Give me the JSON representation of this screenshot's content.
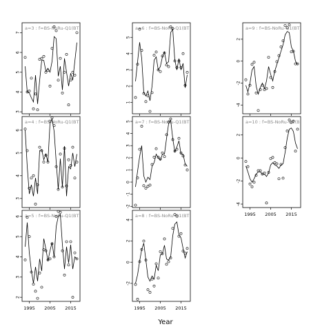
{
  "figure": {
    "xlabel": "Year"
  },
  "chart_data": [
    {
      "type": "scatter",
      "title": "a=3 : f=BS-NoRu-Q1(BT",
      "ylim": [
        2.9,
        7.5
      ],
      "yticks": [
        3,
        4,
        5,
        6,
        7
      ],
      "x": [
        1993,
        1994,
        1995,
        1996,
        1997,
        1998,
        1999,
        2000,
        2001,
        2002,
        2003,
        2004,
        2005,
        2006,
        2007,
        2008,
        2009,
        2010,
        2011,
        2012,
        2013,
        2014,
        2015,
        2016,
        2017,
        2018
      ],
      "points_y": [
        5.75,
        4.0,
        4.05,
        4.7,
        3.15,
        3.9,
        3.1,
        5.65,
        5.7,
        5.8,
        5.0,
        5.1,
        4.3,
        6.2,
        7.3,
        7.1,
        4.6,
        5.7,
        3.95,
        5.0,
        5.9,
        3.35,
        4.6,
        5.0,
        4.85,
        7.0
      ],
      "fit_y": [
        5.3,
        4.0,
        3.95,
        3.7,
        3.5,
        4.85,
        3.4,
        4.6,
        5.6,
        5.6,
        5.05,
        5.2,
        5.0,
        5.55,
        6.8,
        6.7,
        4.8,
        5.3,
        4.1,
        5.7,
        5.0,
        4.3,
        4.95,
        4.6,
        5.55,
        6.5
      ]
    },
    {
      "type": "scatter",
      "title": "a=4 : f=BS-NoRu-Q1(BT",
      "ylim": [
        2.6,
        6.6
      ],
      "yticks": [
        3,
        4,
        5,
        6
      ],
      "x": [
        1993,
        1994,
        1995,
        1996,
        1997,
        1998,
        1999,
        2000,
        2001,
        2002,
        2003,
        2004,
        2005,
        2006,
        2007,
        2008,
        2009,
        2010,
        2011,
        2012,
        2013,
        2014,
        2015,
        2016,
        2017,
        2018
      ],
      "points_y": [
        6.05,
        5.1,
        3.45,
        3.9,
        4.0,
        2.75,
        3.6,
        5.25,
        5.1,
        4.6,
        4.9,
        4.6,
        6.4,
        6.55,
        6.2,
        4.4,
        3.4,
        4.95,
        3.5,
        5.2,
        3.55,
        4.7,
        4.45,
        5.25,
        3.9,
        4.6
      ],
      "fit_y": [
        6.0,
        4.4,
        3.2,
        3.6,
        3.1,
        3.9,
        3.2,
        5.1,
        5.15,
        4.7,
        4.95,
        4.6,
        6.3,
        6.5,
        5.95,
        4.6,
        3.4,
        4.75,
        3.5,
        5.3,
        3.1,
        4.4,
        4.3,
        5.0,
        4.4,
        4.95
      ]
    },
    {
      "type": "scatter",
      "title": "a=5 : f=BS-NoRu-Q1(BT",
      "ylim": [
        1.8,
        6.3
      ],
      "yticks": [
        2,
        3,
        4,
        5,
        6
      ],
      "x": [
        1993,
        1994,
        1995,
        1996,
        1997,
        1998,
        1999,
        2000,
        2001,
        2002,
        2003,
        2004,
        2005,
        2006,
        2007,
        2008,
        2009,
        2010,
        2011,
        2012,
        2013,
        2014,
        2015,
        2016,
        2017,
        2018
      ],
      "points_y": [
        3.85,
        5.95,
        5.0,
        3.25,
        2.65,
        2.3,
        1.95,
        3.2,
        2.5,
        4.35,
        4.3,
        3.85,
        3.9,
        4.65,
        4.0,
        6.0,
        6.25,
        6.2,
        4.3,
        3.1,
        4.75,
        3.6,
        4.75,
        2.0,
        4.2,
        3.9
      ],
      "fit_y": [
        4.5,
        5.7,
        4.2,
        3.3,
        2.7,
        3.5,
        2.8,
        3.9,
        3.3,
        4.9,
        4.4,
        3.8,
        4.3,
        4.7,
        4.0,
        5.5,
        6.0,
        6.1,
        4.6,
        3.4,
        4.5,
        3.7,
        4.6,
        3.4,
        4.0,
        3.9
      ]
    },
    {
      "type": "scatter",
      "title": "a=6 : f=BS-NoRu-Q1(BT",
      "ylim": [
        0.3,
        5.9
      ],
      "yticks": [
        1,
        2,
        3,
        4,
        5
      ],
      "x": [
        1993,
        1994,
        1995,
        1996,
        1997,
        1998,
        1999,
        2000,
        2001,
        2002,
        2003,
        2004,
        2005,
        2006,
        2007,
        2008,
        2009,
        2010,
        2011,
        2012,
        2013,
        2014,
        2015,
        2016,
        2017,
        2018
      ],
      "points_y": [
        1.3,
        3.35,
        5.5,
        4.2,
        1.55,
        1.05,
        1.4,
        0.45,
        1.6,
        3.9,
        4.1,
        3.0,
        2.9,
        3.85,
        4.05,
        3.3,
        3.2,
        5.65,
        5.55,
        3.55,
        3.15,
        3.55,
        3.15,
        4.0,
        2.05,
        2.85
      ],
      "fit_y": [
        2.3,
        3.5,
        4.7,
        3.7,
        1.6,
        1.4,
        1.7,
        1.1,
        2.0,
        3.6,
        3.8,
        3.0,
        3.2,
        3.8,
        4.1,
        3.4,
        3.5,
        5.3,
        5.5,
        3.6,
        3.0,
        3.7,
        3.0,
        3.4,
        1.9,
        2.7
      ]
    },
    {
      "type": "scatter",
      "title": "a=7 : f=BS-NoRu-Q1(BT",
      "ylim": [
        -2.1,
        5.4
      ],
      "yticks": [
        -2,
        -1,
        0,
        1,
        2,
        3,
        4,
        5
      ],
      "x": [
        1993,
        1994,
        1995,
        1996,
        1997,
        1998,
        1999,
        2000,
        2001,
        2002,
        2003,
        2004,
        2005,
        2006,
        2007,
        2008,
        2009,
        2010,
        2011,
        2012,
        2013,
        2014,
        2015,
        2016,
        2017,
        2018
      ],
      "points_y": [
        -1.9,
        0.35,
        2.7,
        4.6,
        -0.3,
        -0.5,
        -0.35,
        -0.25,
        1.45,
        2.05,
        2.75,
        2.05,
        1.9,
        2.4,
        2.1,
        3.9,
        4.95,
        5.2,
        3.5,
        2.55,
        2.7,
        3.6,
        2.4,
        2.15,
        1.4,
        1.0
      ],
      "fit_y": [
        -0.4,
        0.9,
        2.1,
        3.0,
        0.5,
        0.0,
        0.4,
        0.2,
        1.3,
        1.6,
        2.3,
        2.0,
        1.8,
        2.3,
        2.3,
        3.6,
        4.8,
        5.1,
        3.6,
        2.5,
        2.9,
        3.4,
        2.3,
        2.3,
        1.5,
        1.3
      ]
    },
    {
      "type": "scatter",
      "title": "a=8 : f=BS-NoRu-Q1(BT",
      "ylim": [
        -3.7,
        4.9
      ],
      "yticks": [
        -2,
        0,
        2,
        4
      ],
      "x": [
        1993,
        1994,
        1995,
        1996,
        1997,
        1998,
        1999,
        2000,
        2001,
        2002,
        2003,
        2004,
        2005,
        2006,
        2007,
        2008,
        2009,
        2010,
        2011,
        2012,
        2013,
        2014,
        2015,
        2016,
        2017,
        2018
      ],
      "points_y": [
        -2.1,
        -3.5,
        0.05,
        1.2,
        2.0,
        0.2,
        -2.6,
        -2.85,
        -1.6,
        -2.25,
        -0.15,
        -1.5,
        1.0,
        0.8,
        2.2,
        -0.2,
        0.05,
        0.4,
        3.2,
        4.5,
        4.35,
        2.45,
        2.7,
        1.05,
        0.85,
        1.3
      ],
      "fit_y": [
        -2.0,
        -1.2,
        0.1,
        1.2,
        1.8,
        0.2,
        -1.4,
        -1.8,
        -1.3,
        -1.6,
        -0.3,
        -0.8,
        0.7,
        0.8,
        1.6,
        0.3,
        0.2,
        0.5,
        2.5,
        3.6,
        3.8,
        2.6,
        2.3,
        1.3,
        0.4,
        1.0
      ]
    },
    {
      "type": "scatter",
      "title": "a=9 : f=BS-NoRu-Q1(BT",
      "ylim": [
        -4.8,
        3.5
      ],
      "yticks": [
        -4,
        -2,
        0,
        2
      ],
      "x": [
        1993,
        1994,
        1995,
        1996,
        1997,
        1998,
        1999,
        2000,
        2001,
        2002,
        2003,
        2004,
        2005,
        2006,
        2007,
        2008,
        2009,
        2010,
        2011,
        2012,
        2013,
        2014,
        2015,
        2016,
        2017,
        2018
      ],
      "points_y": [
        -1.7,
        -3.0,
        -2.2,
        -0.3,
        -0.1,
        -2.9,
        -4.5,
        -2.6,
        -2.2,
        -2.6,
        -2.5,
        0.35,
        -1.5,
        -2.4,
        -0.95,
        -0.05,
        0.5,
        1.3,
        1.85,
        3.25,
        3.05,
        3.3,
        0.85,
        0.9,
        -0.25,
        -0.25
      ],
      "fit_y": [
        -2.2,
        -2.8,
        -2.0,
        -0.8,
        -0.5,
        -2.3,
        -3.0,
        -2.4,
        -2.0,
        -2.5,
        -1.8,
        -0.5,
        -1.2,
        -1.8,
        -0.9,
        -0.3,
        0.3,
        0.9,
        1.5,
        2.4,
        2.7,
        2.6,
        1.3,
        0.9,
        0.0,
        -0.3
      ]
    },
    {
      "type": "scatter",
      "title": "a=10 : f=BS-NoRu-Q1(B",
      "ylim": [
        -4.3,
        3.6
      ],
      "yticks": [
        -4,
        -2,
        0,
        2
      ],
      "x": [
        1993,
        1994,
        1995,
        1996,
        1997,
        1998,
        1999,
        2000,
        2001,
        2002,
        2003,
        2004,
        2005,
        2006,
        2007,
        2008,
        2009,
        2010,
        2011,
        2012,
        2013,
        2014,
        2015,
        2016,
        2017,
        2018
      ],
      "points_y": [
        -0.3,
        -0.75,
        -2.25,
        -2.5,
        -2.1,
        -1.5,
        -1.1,
        -1.1,
        -1.4,
        -1.3,
        -3.9,
        -1.25,
        -0.05,
        0.05,
        -0.4,
        -0.5,
        -1.8,
        -0.55,
        -1.75,
        0.9,
        2.35,
        3.3,
        3.1,
        3.2,
        0.6,
        2.5
      ],
      "fit_y": [
        -0.7,
        -1.2,
        -1.8,
        -2.1,
        -1.8,
        -1.4,
        -1.2,
        -1.2,
        -1.4,
        -1.4,
        -1.6,
        -1.3,
        -0.6,
        -0.4,
        -0.6,
        -0.7,
        -0.9,
        -0.6,
        -0.5,
        0.5,
        1.7,
        2.5,
        2.6,
        2.3,
        1.3,
        0.8
      ]
    }
  ]
}
